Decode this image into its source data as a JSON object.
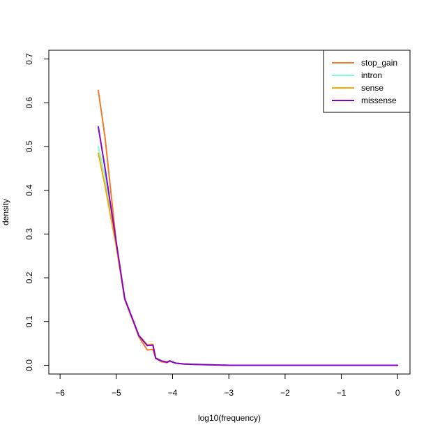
{
  "chart_data": {
    "type": "line",
    "title": "",
    "xlabel": "log10(frequency)",
    "ylabel": "density",
    "xlim": [
      -6.2,
      0.22
    ],
    "ylim": [
      -0.02,
      0.72
    ],
    "x_ticks": [
      -6,
      -5,
      -4,
      -3,
      -2,
      -1,
      0
    ],
    "x_tick_labels": [
      "−6",
      "−5",
      "−4",
      "−3",
      "−2",
      "−1",
      "0"
    ],
    "y_ticks": [
      0.0,
      0.1,
      0.2,
      0.3,
      0.4,
      0.5,
      0.6,
      0.7
    ],
    "y_tick_labels": [
      "0.0",
      "0.1",
      "0.2",
      "0.3",
      "0.4",
      "0.5",
      "0.6",
      "0.7"
    ],
    "grid": false,
    "legend_position": "top-right",
    "series": [
      {
        "name": "stop_gain",
        "color": "#f07a2a",
        "x": [
          -5.32,
          -5.2,
          -5.0,
          -4.85,
          -4.7,
          -4.6,
          -4.45,
          -4.35,
          -4.3,
          -4.2,
          -4.1,
          -4.05,
          -3.95,
          -3.8,
          -3.6,
          -3.3,
          -3.0,
          -2.0,
          -1.0,
          0.0
        ],
        "y": [
          0.628,
          0.52,
          0.28,
          0.15,
          0.1,
          0.065,
          0.035,
          0.036,
          0.016,
          0.008,
          0.006,
          0.009,
          0.005,
          0.003,
          0.002,
          0.001,
          0.0,
          0.0,
          0.0,
          0.0
        ]
      },
      {
        "name": "intron",
        "color": "#7fffd4",
        "x": [
          -5.32,
          -5.2,
          -5.0,
          -4.85,
          -4.7,
          -4.6,
          -4.45,
          -4.35,
          -4.3,
          -4.2,
          -4.1,
          -4.05,
          -3.95,
          -3.8,
          -3.6,
          -3.3,
          -3.0,
          -2.0,
          -1.0,
          0.0
        ],
        "y": [
          0.5,
          0.43,
          0.275,
          0.15,
          0.1,
          0.068,
          0.045,
          0.047,
          0.017,
          0.01,
          0.007,
          0.009,
          0.005,
          0.003,
          0.002,
          0.001,
          0.0,
          0.0,
          0.0,
          0.0
        ]
      },
      {
        "name": "sense",
        "color": "#ffa500",
        "x": [
          -5.32,
          -5.2,
          -5.0,
          -4.85,
          -4.7,
          -4.6,
          -4.45,
          -4.35,
          -4.3,
          -4.2,
          -4.1,
          -4.05,
          -3.95,
          -3.8,
          -3.6,
          -3.3,
          -3.0,
          -2.0,
          -1.0,
          0.0
        ],
        "y": [
          0.485,
          0.41,
          0.27,
          0.15,
          0.1,
          0.068,
          0.047,
          0.048,
          0.017,
          0.01,
          0.008,
          0.009,
          0.005,
          0.003,
          0.002,
          0.001,
          0.0,
          0.0,
          0.0,
          0.0
        ]
      },
      {
        "name": "missense",
        "color": "#8800cc",
        "x": [
          -5.32,
          -5.2,
          -5.0,
          -4.85,
          -4.7,
          -4.6,
          -4.45,
          -4.35,
          -4.3,
          -4.2,
          -4.1,
          -4.05,
          -3.95,
          -3.8,
          -3.6,
          -3.3,
          -3.0,
          -2.0,
          -1.0,
          0.0
        ],
        "y": [
          0.545,
          0.45,
          0.28,
          0.152,
          0.102,
          0.068,
          0.045,
          0.046,
          0.016,
          0.01,
          0.007,
          0.01,
          0.005,
          0.003,
          0.002,
          0.001,
          0.0,
          0.0,
          0.0,
          0.0
        ]
      }
    ]
  }
}
